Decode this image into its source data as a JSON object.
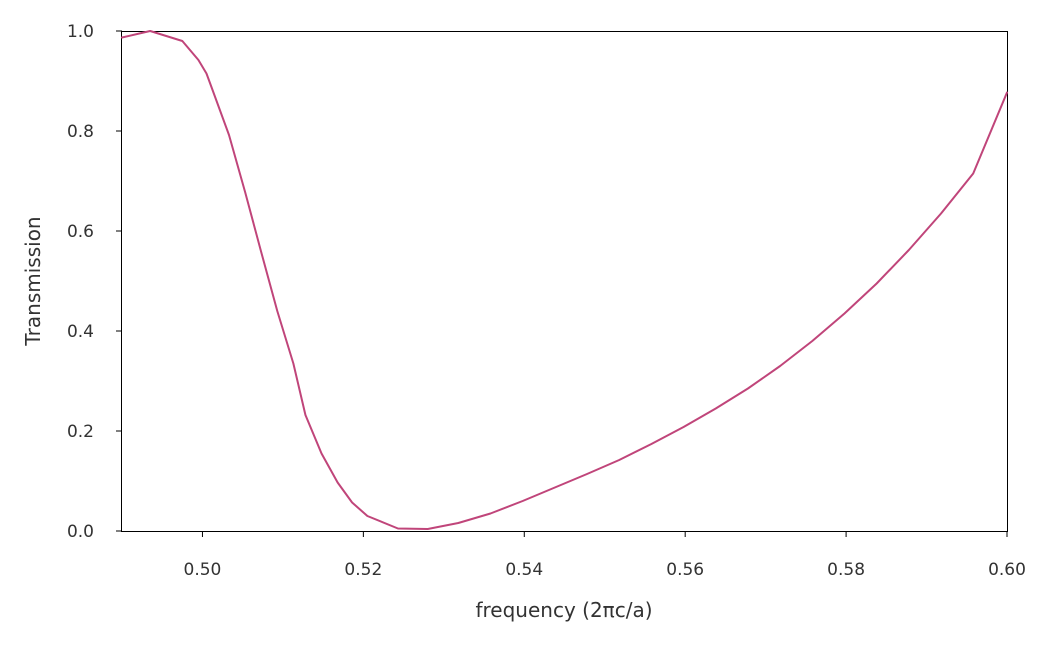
{
  "chart_data": {
    "type": "line",
    "title": "",
    "xlabel": "frequency (2πc/a)",
    "ylabel": "Transmission",
    "xlim": [
      0.49,
      0.6
    ],
    "ylim": [
      0.0,
      1.0
    ],
    "xticks": [
      "0.50",
      "0.52",
      "0.54",
      "0.56",
      "0.58",
      "0.60"
    ],
    "xtick_values": [
      0.5,
      0.52,
      0.54,
      0.56,
      0.58,
      0.6
    ],
    "yticks": [
      "0.0",
      "0.2",
      "0.4",
      "0.6",
      "0.8",
      "1.0"
    ],
    "ytick_values": [
      0.0,
      0.2,
      0.4,
      0.6,
      0.8,
      1.0
    ],
    "grid": false,
    "colors": {
      "line": "#c0457a",
      "axes": "#000000",
      "text": "#333333"
    },
    "series": [
      {
        "x": [
          0.49,
          0.4935,
          0.4975,
          0.4995,
          0.5005,
          0.5013,
          0.5033,
          0.5053,
          0.5073,
          0.5093,
          0.5113,
          0.5128,
          0.5148,
          0.5168,
          0.5186,
          0.5205,
          0.5243,
          0.528,
          0.5318,
          0.5358,
          0.5398,
          0.5438,
          0.5478,
          0.5518,
          0.5558,
          0.5598,
          0.5638,
          0.5678,
          0.5718,
          0.5758,
          0.5798,
          0.5838,
          0.5878,
          0.5918,
          0.5958,
          0.6
        ],
        "values": [
          0.987,
          1.0,
          0.98,
          0.942,
          0.915,
          0.88,
          0.792,
          0.678,
          0.558,
          0.44,
          0.335,
          0.232,
          0.155,
          0.097,
          0.057,
          0.03,
          0.005,
          0.004,
          0.016,
          0.035,
          0.06,
          0.087,
          0.114,
          0.142,
          0.174,
          0.208,
          0.245,
          0.285,
          0.33,
          0.38,
          0.435,
          0.495,
          0.562,
          0.635,
          0.715,
          0.877
        ]
      }
    ]
  }
}
